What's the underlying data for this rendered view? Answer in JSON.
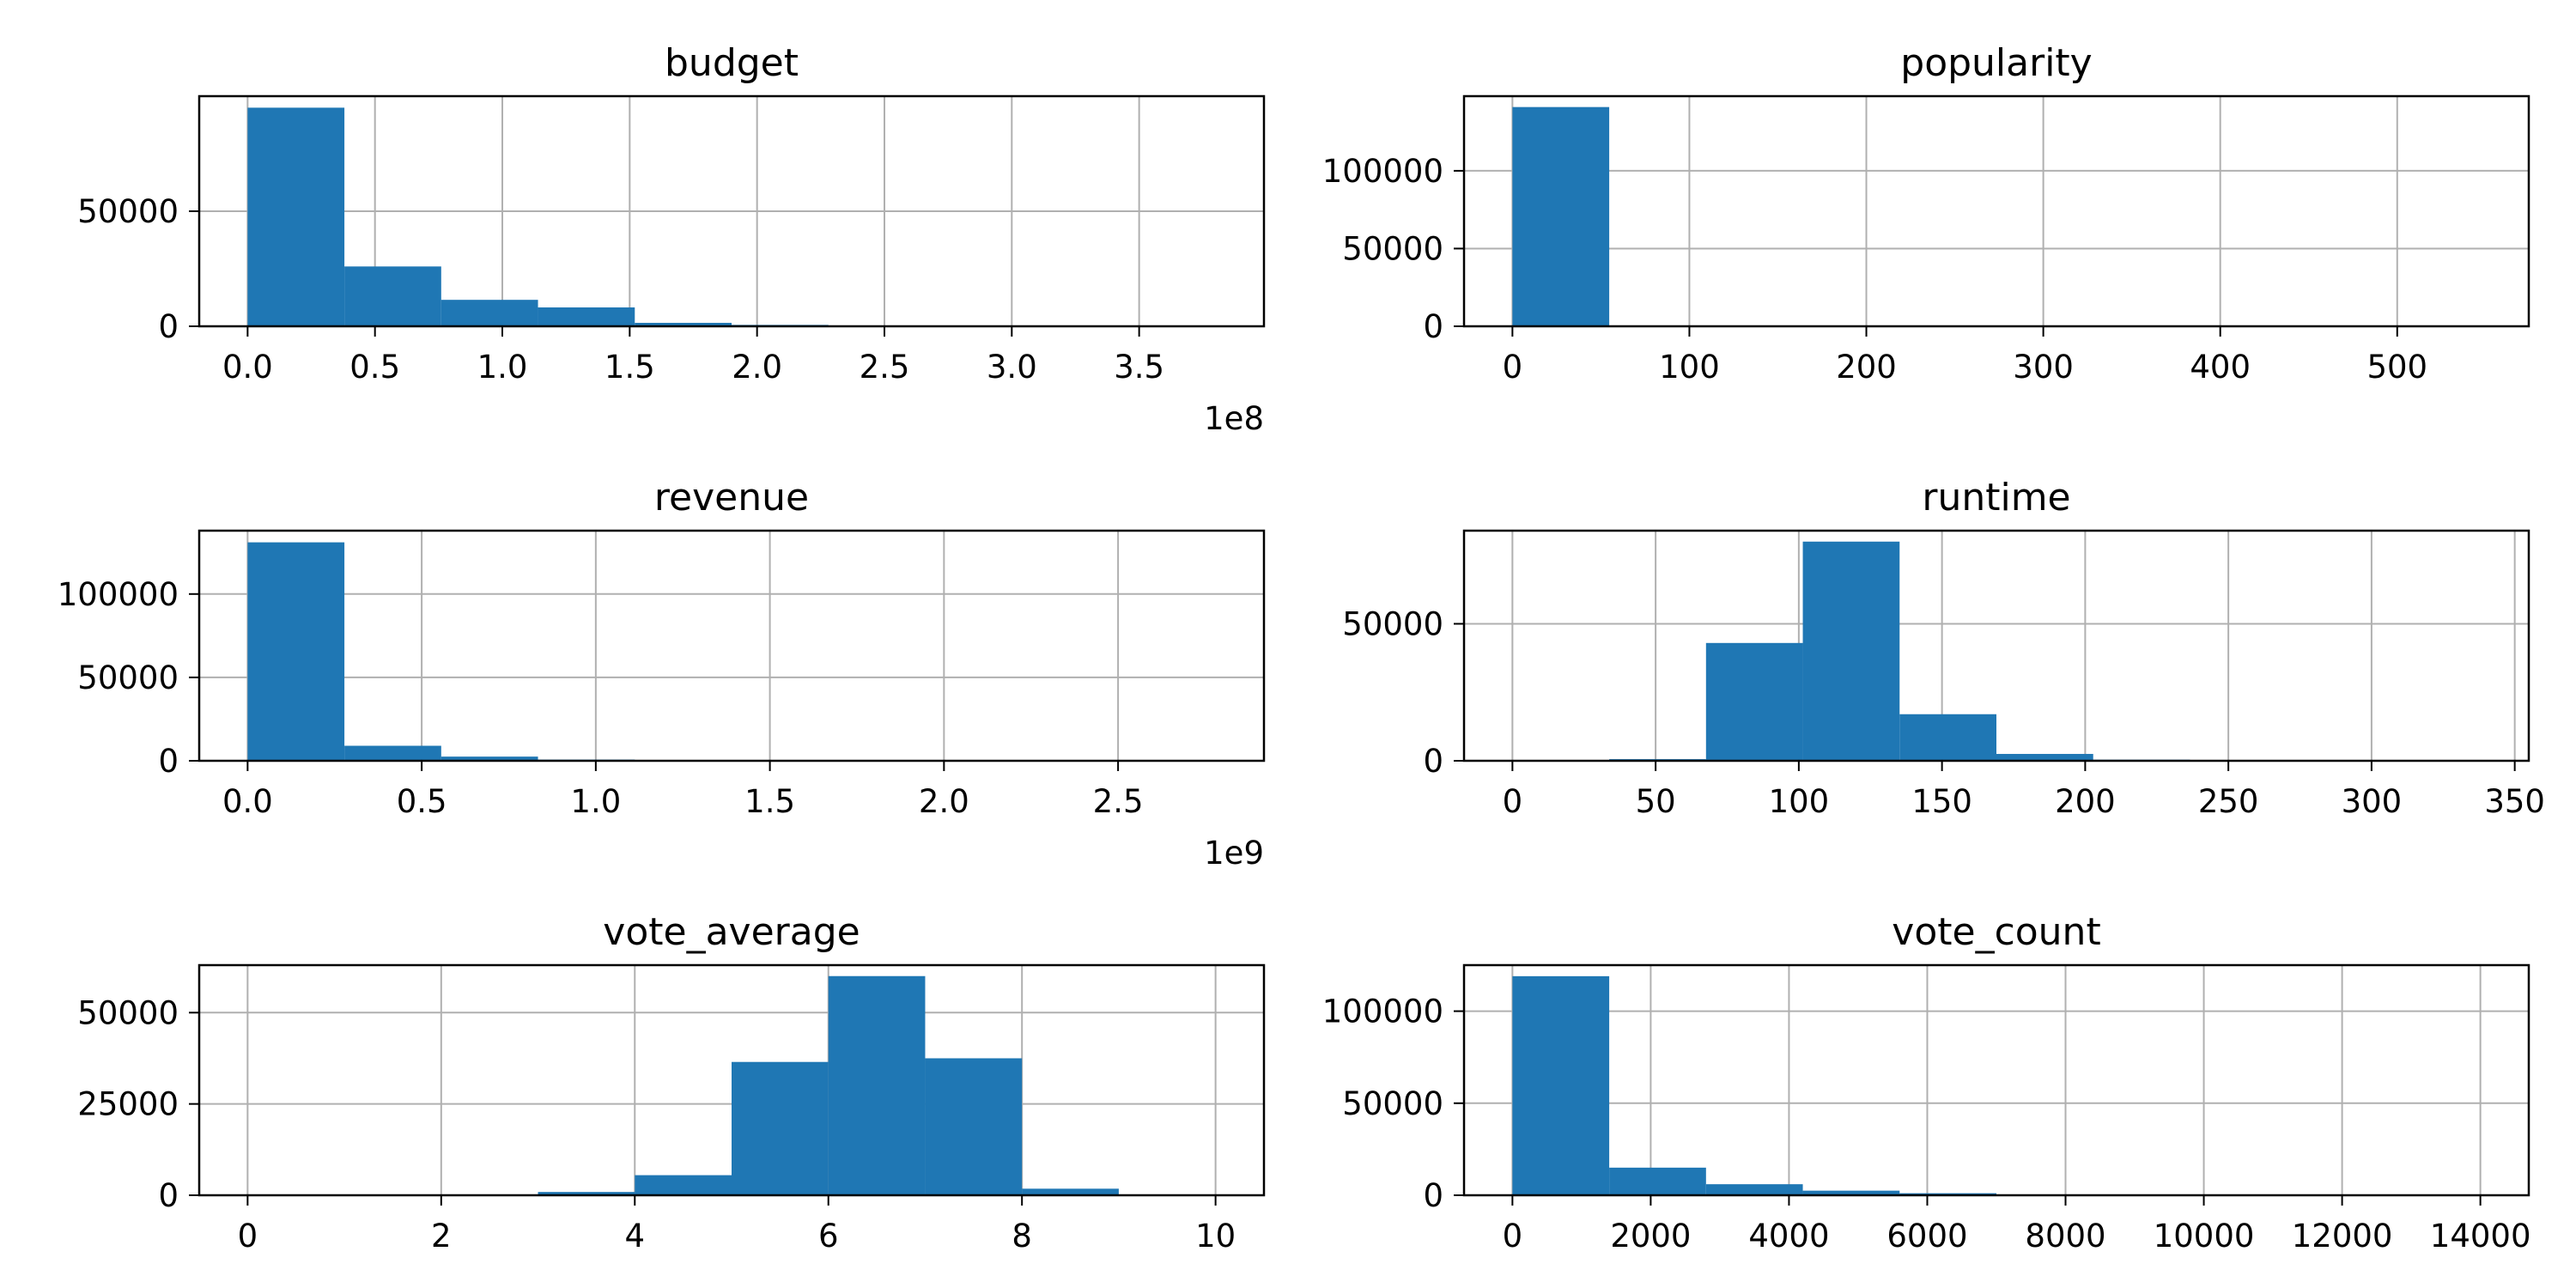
{
  "chart_data": [
    {
      "type": "bar",
      "title": "budget",
      "xlabel": "",
      "ylabel": "",
      "bin_edges": [
        0,
        38000000,
        76000000,
        114000000,
        152000000,
        190000000,
        228000000,
        266000000,
        304000000,
        342000000,
        380000000
      ],
      "counts": [
        95000,
        26000,
        11500,
        8200,
        1500,
        600,
        150,
        60,
        20,
        10
      ],
      "xlim": [
        -19000000,
        399000000
      ],
      "ylim": [
        0,
        100000
      ],
      "x_ticks": [
        0,
        50000000,
        100000000,
        150000000,
        200000000,
        250000000,
        300000000,
        350000000
      ],
      "x_tick_labels": [
        "0.0",
        "0.5",
        "1.0",
        "1.5",
        "2.0",
        "2.5",
        "3.0",
        "3.5"
      ],
      "y_ticks": [
        0,
        50000
      ],
      "y_tick_labels": [
        "0",
        "50000"
      ],
      "offset_text": "1e8",
      "grid": true,
      "color": "#1f77b4"
    },
    {
      "type": "bar",
      "title": "popularity",
      "xlabel": "",
      "ylabel": "",
      "bin_edges": [
        0,
        54.7,
        109.4,
        164.1,
        218.8,
        273.5,
        328.2,
        382.9,
        437.6,
        492.3,
        547
      ],
      "counts": [
        141000,
        300,
        60,
        20,
        10,
        5,
        3,
        2,
        1,
        1
      ],
      "xlim": [
        -27.35,
        574.35
      ],
      "ylim": [
        0,
        148000
      ],
      "x_ticks": [
        0,
        100,
        200,
        300,
        400,
        500
      ],
      "x_tick_labels": [
        "0",
        "100",
        "200",
        "300",
        "400",
        "500"
      ],
      "y_ticks": [
        0,
        50000,
        100000
      ],
      "y_tick_labels": [
        "0",
        "50000",
        "100000"
      ],
      "offset_text": "",
      "grid": true,
      "color": "#1f77b4"
    },
    {
      "type": "bar",
      "title": "revenue",
      "xlabel": "",
      "ylabel": "",
      "bin_edges": [
        0,
        278000000,
        556000000,
        834000000,
        1112000000,
        1390000000,
        1668000000,
        1946000000,
        2224000000,
        2502000000,
        2780000000
      ],
      "counts": [
        131000,
        9000,
        2500,
        700,
        250,
        100,
        50,
        20,
        10,
        5
      ],
      "xlim": [
        -139000000,
        2919000000
      ],
      "ylim": [
        0,
        138000
      ],
      "x_ticks": [
        0,
        500000000,
        1000000000,
        1500000000,
        2000000000,
        2500000000
      ],
      "x_tick_labels": [
        "0.0",
        "0.5",
        "1.0",
        "1.5",
        "2.0",
        "2.5"
      ],
      "y_ticks": [
        0,
        50000,
        100000
      ],
      "y_tick_labels": [
        "0",
        "50000",
        "100000"
      ],
      "offset_text": "1e9",
      "grid": true,
      "color": "#1f77b4"
    },
    {
      "type": "bar",
      "title": "runtime",
      "xlabel": "",
      "ylabel": "",
      "bin_edges": [
        0,
        33.8,
        67.6,
        101.4,
        135.2,
        169,
        202.8,
        236.6,
        270.4,
        304.2,
        338
      ],
      "counts": [
        200,
        600,
        43000,
        80000,
        17000,
        2500,
        400,
        100,
        30,
        10
      ],
      "xlim": [
        -16.9,
        354.9
      ],
      "ylim": [
        0,
        84000
      ],
      "x_ticks": [
        0,
        50,
        100,
        150,
        200,
        250,
        300,
        350
      ],
      "x_tick_labels": [
        "0",
        "50",
        "100",
        "150",
        "200",
        "250",
        "300",
        "350"
      ],
      "y_ticks": [
        0,
        50000
      ],
      "y_tick_labels": [
        "0",
        "50000"
      ],
      "offset_text": "",
      "grid": true,
      "color": "#1f77b4"
    },
    {
      "type": "bar",
      "title": "vote_average",
      "xlabel": "",
      "ylabel": "",
      "bin_edges": [
        0,
        1,
        2,
        3,
        4,
        5,
        6,
        7,
        8,
        9,
        10
      ],
      "counts": [
        80,
        30,
        150,
        900,
        5500,
        36500,
        60000,
        37500,
        1800,
        100
      ],
      "xlim": [
        -0.5,
        10.5
      ],
      "ylim": [
        0,
        63000
      ],
      "x_ticks": [
        0,
        2,
        4,
        6,
        8,
        10
      ],
      "x_tick_labels": [
        "0",
        "2",
        "4",
        "6",
        "8",
        "10"
      ],
      "y_ticks": [
        0,
        25000,
        50000
      ],
      "y_tick_labels": [
        "0",
        "25000",
        "50000"
      ],
      "offset_text": "",
      "grid": true,
      "color": "#1f77b4"
    },
    {
      "type": "bar",
      "title": "vote_count",
      "xlabel": "",
      "ylabel": "",
      "bin_edges": [
        0,
        1400,
        2800,
        4200,
        5600,
        7000,
        8400,
        9800,
        11200,
        12600,
        14000
      ],
      "counts": [
        119000,
        15000,
        6000,
        2500,
        1100,
        400,
        150,
        60,
        20,
        10
      ],
      "xlim": [
        -700,
        14700
      ],
      "ylim": [
        0,
        125000
      ],
      "x_ticks": [
        0,
        2000,
        4000,
        6000,
        8000,
        10000,
        12000,
        14000
      ],
      "x_tick_labels": [
        "0",
        "2000",
        "4000",
        "6000",
        "8000",
        "10000",
        "12000",
        "14000"
      ],
      "y_ticks": [
        0,
        50000,
        100000
      ],
      "y_tick_labels": [
        "0",
        "50000",
        "100000"
      ],
      "offset_text": "",
      "grid": true,
      "color": "#1f77b4"
    }
  ]
}
